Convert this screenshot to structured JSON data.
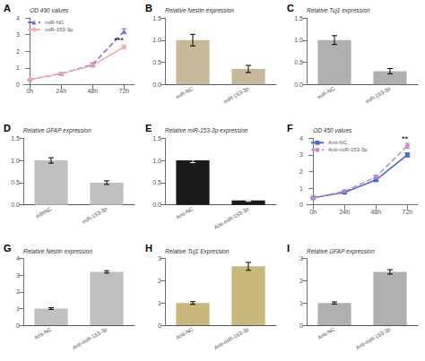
{
  "chart_data": [
    {
      "type": "line",
      "title": "A",
      "ylabel": "OD 490 values",
      "x": [
        0,
        24,
        48,
        72
      ],
      "xlim": [
        -5,
        80
      ],
      "xticks": [
        {
          "value": 0,
          "label": "0h"
        },
        {
          "value": 24,
          "label": "24h"
        },
        {
          "value": 48,
          "label": "48h"
        },
        {
          "value": 72,
          "label": "72h"
        }
      ],
      "ylim": [
        0,
        4
      ],
      "yticks": [
        0,
        1,
        2,
        3,
        4
      ],
      "series": [
        {
          "name": "miR-NC",
          "color": "#7b68ee",
          "values": [
            0.3,
            0.65,
            1.2,
            3.2
          ],
          "errors": [
            0.02,
            0.05,
            0.1,
            0.15
          ],
          "marker": "triangle",
          "line_style": "dashed"
        },
        {
          "name": "miR-153-3p",
          "color": "#ffaaaa",
          "values": [
            0.3,
            0.65,
            1.15,
            2.25
          ],
          "errors": [
            0.02,
            0.05,
            0.1,
            0.12
          ],
          "marker": "circle",
          "line_style": "solid"
        }
      ],
      "annotations": [
        {
          "text": "***",
          "x": 68,
          "y": 2.4
        }
      ],
      "legend": "upper left",
      "grid": false
    },
    {
      "type": "bar",
      "title": "B",
      "ylabel": "Relative Nestin expression",
      "categories": [
        "miR-NC",
        "miR-153-3p"
      ],
      "values": [
        1.0,
        0.35
      ],
      "errors": [
        0.13,
        0.08
      ],
      "color": "#c8b89a",
      "ylim": [
        0,
        1.5
      ],
      "yticks": [
        {
          "value": 0,
          "label": "0.0"
        },
        0.5,
        {
          "value": 1,
          "label": "1.0"
        },
        1.5
      ],
      "grid": false
    },
    {
      "type": "bar",
      "title": "C",
      "ylabel": "Relative Tuj1 expression",
      "categories": [
        "miR-NC",
        "miR-153-3p"
      ],
      "values": [
        1.0,
        0.3
      ],
      "errors": [
        0.1,
        0.06
      ],
      "color": "#b0b0b0",
      "ylim": [
        0,
        1.5
      ],
      "yticks": [
        {
          "value": 0,
          "label": "0.0"
        },
        0.5,
        {
          "value": 1,
          "label": "1.0"
        },
        1.5
      ],
      "grid": false
    },
    {
      "type": "bar",
      "title": "D",
      "ylabel": "Relative GFAP expression",
      "categories": [
        "miRNC",
        "miR-153-3p"
      ],
      "values": [
        1.0,
        0.5
      ],
      "errors": [
        0.06,
        0.04
      ],
      "color": "#c0c0c0",
      "ylim": [
        0,
        1.5
      ],
      "yticks": [
        {
          "value": 0,
          "label": "0.0"
        },
        0.5,
        {
          "value": 1,
          "label": "1.0"
        },
        1.5
      ],
      "grid": false
    },
    {
      "type": "bar",
      "title": "E",
      "ylabel": "Relative miR-153-3p expression",
      "categories": [
        "Anti-NC",
        "Anti-miR-153-3p"
      ],
      "values": [
        1.0,
        0.1
      ],
      "errors": [
        0.05,
        0.02
      ],
      "color": "#1a1a1a",
      "ylim": [
        0,
        1.5
      ],
      "yticks": [
        {
          "value": 0,
          "label": "0.0"
        },
        0.5,
        {
          "value": 1,
          "label": "1.0"
        },
        1.5
      ],
      "grid": false
    },
    {
      "type": "line",
      "title": "F",
      "ylabel": "OD 450 values",
      "x": [
        0,
        24,
        48,
        72
      ],
      "xlim": [
        -5,
        80
      ],
      "xticks": [
        {
          "value": 0,
          "label": "0h"
        },
        {
          "value": 24,
          "label": "24h"
        },
        {
          "value": 48,
          "label": "48h"
        },
        {
          "value": 72,
          "label": "72h"
        }
      ],
      "ylim": [
        0,
        4
      ],
      "yticks": [
        0,
        1,
        2,
        3,
        4
      ],
      "series": [
        {
          "name": "Anti-NC",
          "color": "#4169e1",
          "values": [
            0.42,
            0.75,
            1.5,
            3.0
          ],
          "errors": [
            0.02,
            0.05,
            0.1,
            0.12
          ],
          "marker": "square",
          "line_style": "solid"
        },
        {
          "name": "Anti-miR-153-3p",
          "color": "#cc88cc",
          "values": [
            0.42,
            0.82,
            1.68,
            3.55
          ],
          "errors": [
            0.02,
            0.06,
            0.1,
            0.15
          ],
          "marker": "circle",
          "line_style": "dashed"
        }
      ],
      "annotations": [
        {
          "text": "**",
          "x": 70,
          "y": 3.7
        }
      ],
      "legend": "upper left",
      "grid": false
    },
    {
      "type": "bar",
      "title": "G",
      "ylabel": "Relative Nestin expression",
      "categories": [
        "Anti-NC",
        "Anti-miR-153-3p"
      ],
      "values": [
        1.0,
        3.2
      ],
      "errors": [
        0.05,
        0.07
      ],
      "color": "#c0c0c0",
      "ylim": [
        0,
        4
      ],
      "yticks": [
        0,
        1,
        2,
        3,
        4
      ],
      "grid": false
    },
    {
      "type": "bar",
      "title": "H",
      "ylabel": "Relative Tuj1 Expression",
      "categories": [
        "Anti-NC",
        "Anti-miR-153-3p"
      ],
      "values": [
        1.0,
        2.65
      ],
      "errors": [
        0.06,
        0.18
      ],
      "color": "#c8b87a",
      "ylim": [
        0,
        3
      ],
      "yticks": [
        0,
        1,
        2,
        3
      ],
      "grid": false
    },
    {
      "type": "bar",
      "title": "I",
      "ylabel": "Relative GFAP expression",
      "categories": [
        "Anti-NC",
        "Anti-miR-153-3p"
      ],
      "values": [
        1.0,
        2.4
      ],
      "errors": [
        0.05,
        0.1
      ],
      "color": "#b0b0b0",
      "ylim": [
        0,
        3
      ],
      "yticks": [
        0,
        1,
        2,
        3
      ],
      "grid": false
    }
  ]
}
